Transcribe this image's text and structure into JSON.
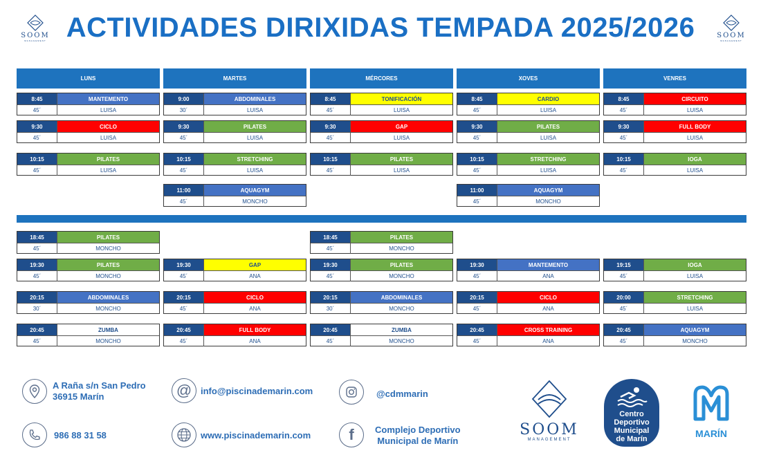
{
  "title": "ACTIVIDADES DIRIXIDAS TEMPADA 2025/2026",
  "logo": {
    "text": "SOOM",
    "subtext": "MANAGEMENT"
  },
  "days": [
    "LUNS",
    "MARTES",
    "MÉRCORES",
    "XOVES",
    "VENRES"
  ],
  "morning": {
    "luns": [
      {
        "time": "8:45",
        "activity": "MANTEMENTO",
        "duration": "45´",
        "instructor": "LUISA",
        "color": "blue"
      },
      {
        "time": "9:30",
        "activity": "CICLO",
        "duration": "45´",
        "instructor": "LUISA",
        "color": "red"
      },
      {
        "time": "10:15",
        "activity": "PILATES",
        "duration": "45´",
        "instructor": "LUISA",
        "color": "green"
      }
    ],
    "martes": [
      {
        "time": "9:00",
        "activity": "ABDOMINALES",
        "duration": "30´",
        "instructor": "LUISA",
        "color": "blue"
      },
      {
        "time": "9:30",
        "activity": "PILATES",
        "duration": "45´",
        "instructor": "LUISA",
        "color": "green"
      },
      {
        "time": "10:15",
        "activity": "STRETCHING",
        "duration": "45´",
        "instructor": "LUISA",
        "color": "green"
      },
      {
        "time": "11:00",
        "activity": "AQUAGYM",
        "duration": "45´",
        "instructor": "MONCHO",
        "color": "blue"
      }
    ],
    "mercores": [
      {
        "time": "8:45",
        "activity": "TONIFICACIÓN",
        "duration": "45´",
        "instructor": "LUISA",
        "color": "yellow"
      },
      {
        "time": "9:30",
        "activity": "GAP",
        "duration": "45´",
        "instructor": "LUISA",
        "color": "red"
      },
      {
        "time": "10:15",
        "activity": "PILATES",
        "duration": "45´",
        "instructor": "LUISA",
        "color": "green"
      }
    ],
    "xoves": [
      {
        "time": "8:45",
        "activity": "CARDIO",
        "duration": "45´",
        "instructor": "LUISA",
        "color": "yellow"
      },
      {
        "time": "9:30",
        "activity": "PILATES",
        "duration": "45´",
        "instructor": "LUISA",
        "color": "green"
      },
      {
        "time": "10:15",
        "activity": "STRETCHING",
        "duration": "45´",
        "instructor": "LUISA",
        "color": "green"
      },
      {
        "time": "11:00",
        "activity": "AQUAGYM",
        "duration": "45´",
        "instructor": "MONCHO",
        "color": "blue"
      }
    ],
    "venres": [
      {
        "time": "8:45",
        "activity": "CIRCUITO",
        "duration": "45´",
        "instructor": "LUISA",
        "color": "red"
      },
      {
        "time": "9:30",
        "activity": "FULL BODY",
        "duration": "45´",
        "instructor": "LUISA",
        "color": "red"
      },
      {
        "time": "10:15",
        "activity": "IOGA",
        "duration": "45´",
        "instructor": "LUISA",
        "color": "green"
      }
    ]
  },
  "evening": {
    "luns": [
      {
        "time": "18:45",
        "activity": "PILATES",
        "duration": "45´",
        "instructor": "MONCHO",
        "color": "green"
      },
      {
        "time": "19:30",
        "activity": "PILATES",
        "duration": "45´",
        "instructor": "MONCHO",
        "color": "green"
      },
      {
        "time": "20:15",
        "activity": "ABDOMINALES",
        "duration": "30´",
        "instructor": "MONCHO",
        "color": "blue"
      },
      {
        "time": "20:45",
        "activity": "ZUMBA",
        "duration": "45´",
        "instructor": "MONCHO",
        "color": "white"
      }
    ],
    "martes": [
      {
        "time": "19:30",
        "activity": "GAP",
        "duration": "45´",
        "instructor": "ANA",
        "color": "yellow"
      },
      {
        "time": "20:15",
        "activity": "CICLO",
        "duration": "45´",
        "instructor": "ANA",
        "color": "red"
      },
      {
        "time": "20:45",
        "activity": "FULL BODY",
        "duration": "45´",
        "instructor": "ANA",
        "color": "red"
      }
    ],
    "mercores": [
      {
        "time": "18:45",
        "activity": "PILATES",
        "duration": "45´",
        "instructor": "MONCHO",
        "color": "green"
      },
      {
        "time": "19:30",
        "activity": "PILATES",
        "duration": "45´",
        "instructor": "MONCHO",
        "color": "green"
      },
      {
        "time": "20:15",
        "activity": "ABDOMINALES",
        "duration": "30´",
        "instructor": "MONCHO",
        "color": "blue"
      },
      {
        "time": "20:45",
        "activity": "ZUMBA",
        "duration": "45´",
        "instructor": "MONCHO",
        "color": "white"
      }
    ],
    "xoves": [
      {
        "time": "19:30",
        "activity": "MANTEMENTO",
        "duration": "45´",
        "instructor": "ANA",
        "color": "blue"
      },
      {
        "time": "20:15",
        "activity": "CICLO",
        "duration": "45´",
        "instructor": "ANA",
        "color": "red"
      },
      {
        "time": "20:45",
        "activity": "CROSS TRAINING",
        "duration": "45´",
        "instructor": "ANA",
        "color": "red"
      }
    ],
    "venres": [
      {
        "time": "19:15",
        "activity": "IOGA",
        "duration": "45´",
        "instructor": "LUISA",
        "color": "green"
      },
      {
        "time": "20:00",
        "activity": "STRETCHING",
        "duration": "45´",
        "instructor": "LUISA",
        "color": "green"
      },
      {
        "time": "20:45",
        "activity": "AQUAGYM",
        "duration": "45´",
        "instructor": "MONCHO",
        "color": "blue"
      }
    ]
  },
  "footer": {
    "address_line1": "A Raña s/n  San Pedro",
    "address_line2": "36915      Marín",
    "phone": "986 88 31 58",
    "email": "info@piscinademarin.com",
    "website": "www.piscinademarin.com",
    "instagram": "@cdmmarin",
    "facebook_line1": "Complejo Deportivo",
    "facebook_line2": "Municipal de Marín",
    "cdm_line1": "Centro",
    "cdm_line2": "Deportivo",
    "cdm_line3": "Municipal",
    "cdm_line4": "de Marín",
    "marin": "MARÍN"
  },
  "colors": {
    "blue": "#4472c4",
    "green": "#70ad47",
    "red": "#ff0000",
    "yellow": "#ffff00",
    "header": "#1e73be"
  }
}
